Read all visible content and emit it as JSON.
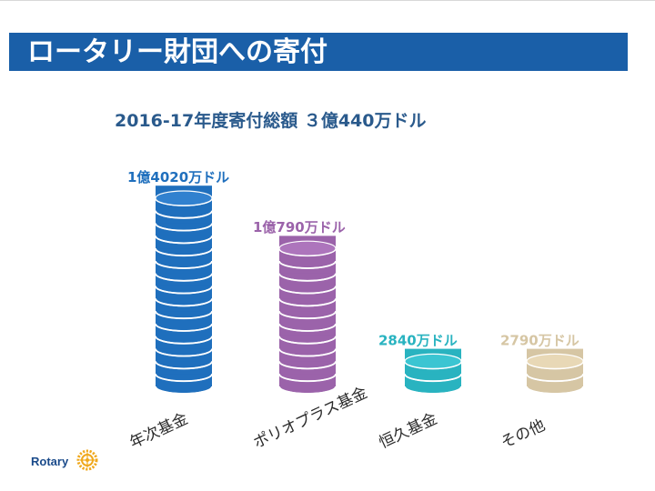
{
  "slide": {
    "title": "ロータリー財団への寄付",
    "logo_text": "Rotary"
  },
  "colors": {
    "title_bar": "#1a5fa8",
    "title_text": "#ffffff",
    "total_text": "#2a5a8c"
  },
  "chart_data": {
    "type": "bar",
    "title": "2016-17年度寄付総額 ３億440万ドル",
    "categories": [
      "年次基金",
      "ポリオプラス基金",
      "恒久基金",
      "その他"
    ],
    "values": [
      14020,
      10790,
      2840,
      2790
    ],
    "unit": "万ドル",
    "data_labels": [
      "1億4020万ドル",
      "1億790万ドル",
      "2840万ドル",
      "2790万ドル"
    ],
    "colors": [
      "#1f6fbd",
      "#9b63aa",
      "#29b3c0",
      "#d6c6a4"
    ],
    "label_colors": [
      "#1f6fbd",
      "#9b63aa",
      "#29b3c0",
      "#d6c6a4"
    ],
    "style": "stacked coins"
  }
}
